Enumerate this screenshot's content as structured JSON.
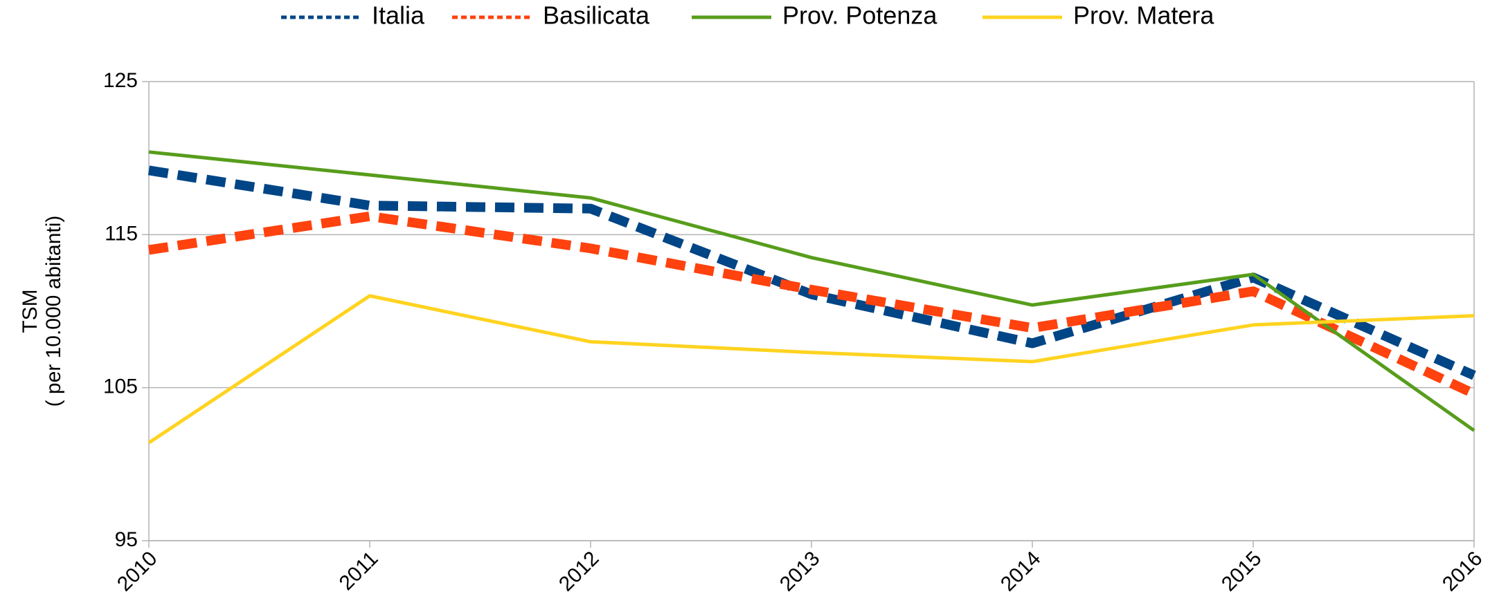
{
  "chart_data": {
    "type": "line",
    "y_label": [
      "TSM",
      "( per 10.000 abitanti)"
    ],
    "categories": [
      "2010",
      "2011",
      "2012",
      "2013",
      "2014",
      "2015",
      "2016"
    ],
    "series": [
      {
        "name": "Italia",
        "color": "#004586",
        "dashed": true,
        "values": [
          119.2,
          116.9,
          116.7,
          111.1,
          107.9,
          112.2,
          105.8
        ]
      },
      {
        "name": "Basilicata",
        "color": "#ff420e",
        "dashed": true,
        "values": [
          114.0,
          116.2,
          114.1,
          111.4,
          108.9,
          111.3,
          104.6
        ]
      },
      {
        "name": "Prov. Potenza",
        "color": "#579d1c",
        "dashed": false,
        "values": [
          120.4,
          118.9,
          117.4,
          113.5,
          110.4,
          112.4,
          102.2
        ]
      },
      {
        "name": "Prov. Matera",
        "color": "#ffd320",
        "dashed": false,
        "values": [
          101.4,
          111.0,
          108.0,
          107.3,
          106.7,
          109.1,
          109.7
        ]
      }
    ],
    "ylim": [
      95,
      125
    ],
    "yticks": [
      95,
      105,
      115,
      125
    ],
    "grid": true,
    "legend": "top"
  }
}
